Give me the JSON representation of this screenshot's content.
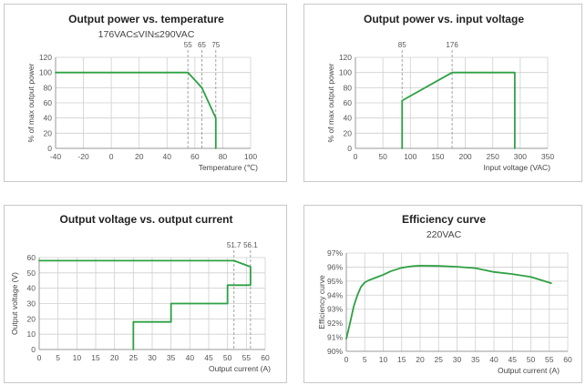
{
  "colors": {
    "line": "#2ea043",
    "grid": "#cfcfcf",
    "axis": "#999999",
    "dash": "#999999"
  },
  "chart_data": [
    {
      "type": "line",
      "title": "Output power vs. temperature",
      "subtitle": "176VAC≤VIN≤290VAC",
      "xlabel": "Temperature (℃)",
      "ylabel": "% of max output power",
      "xlim": [
        -40,
        100
      ],
      "ylim": [
        0,
        120
      ],
      "xticks": [
        -40,
        -20,
        0,
        20,
        40,
        60,
        80,
        100
      ],
      "yticks": [
        0,
        20,
        40,
        60,
        80,
        100,
        120
      ],
      "grid": true,
      "markers": [
        55,
        65,
        75
      ],
      "series": [
        {
          "x": [
            -40,
            55,
            65,
            75,
            75
          ],
          "y": [
            100,
            100,
            80,
            40,
            0
          ]
        }
      ]
    },
    {
      "type": "line",
      "title": "Output power vs. input voltage",
      "xlabel": "Input voltage (VAC)",
      "ylabel": "% of max output power",
      "xlim": [
        0,
        350
      ],
      "ylim": [
        0,
        120
      ],
      "xticks": [
        0,
        50,
        100,
        150,
        200,
        250,
        300,
        350
      ],
      "yticks": [
        0,
        20,
        40,
        60,
        80,
        100,
        120
      ],
      "grid": true,
      "markers": [
        85,
        176
      ],
      "series": [
        {
          "x": [
            85,
            85,
            176,
            290,
            290
          ],
          "y": [
            0,
            63,
            100,
            100,
            0
          ]
        }
      ]
    },
    {
      "type": "line",
      "title": "Output voltage vs. output current",
      "xlabel": "Output current (A)",
      "ylabel": "Output voltage (V)",
      "xlim": [
        0,
        60
      ],
      "ylim": [
        0,
        60
      ],
      "xticks": [
        0,
        5,
        10,
        15,
        20,
        25,
        30,
        35,
        40,
        45,
        50,
        55,
        60
      ],
      "yticks": [
        0,
        10,
        20,
        30,
        40,
        50,
        60
      ],
      "grid": true,
      "markers": [
        51.7,
        56.1
      ],
      "marker_labels": [
        "51.7",
        "56.1"
      ],
      "series": [
        {
          "x": [
            0,
            51.7,
            56.1,
            56.1,
            50,
            50,
            35,
            35,
            25,
            25
          ],
          "y": [
            58,
            58,
            54,
            42,
            42,
            30,
            30,
            18,
            18,
            0
          ]
        }
      ]
    },
    {
      "type": "line",
      "title": "Efficiency curve",
      "subtitle": "220VAC",
      "xlabel": "Output current (A)",
      "ylabel": "Efficiency curve",
      "xlim": [
        0,
        60
      ],
      "ylim": [
        90,
        97
      ],
      "xticks": [
        0,
        5,
        10,
        15,
        20,
        25,
        30,
        35,
        40,
        45,
        50,
        55,
        60
      ],
      "yticks": [
        90,
        91,
        92,
        93,
        94,
        95,
        96,
        97
      ],
      "ytick_suffix": "%",
      "grid": true,
      "markers": [],
      "series": [
        {
          "x": [
            0,
            1,
            2,
            3,
            4,
            5,
            6,
            8,
            10,
            12,
            15,
            18,
            20,
            25,
            30,
            35,
            40,
            45,
            50,
            55.5
          ],
          "y": [
            90.9,
            92.0,
            93.2,
            94.0,
            94.6,
            94.9,
            95.05,
            95.25,
            95.45,
            95.7,
            95.95,
            96.07,
            96.1,
            96.08,
            96.02,
            95.92,
            95.65,
            95.5,
            95.3,
            94.85
          ]
        }
      ]
    }
  ]
}
